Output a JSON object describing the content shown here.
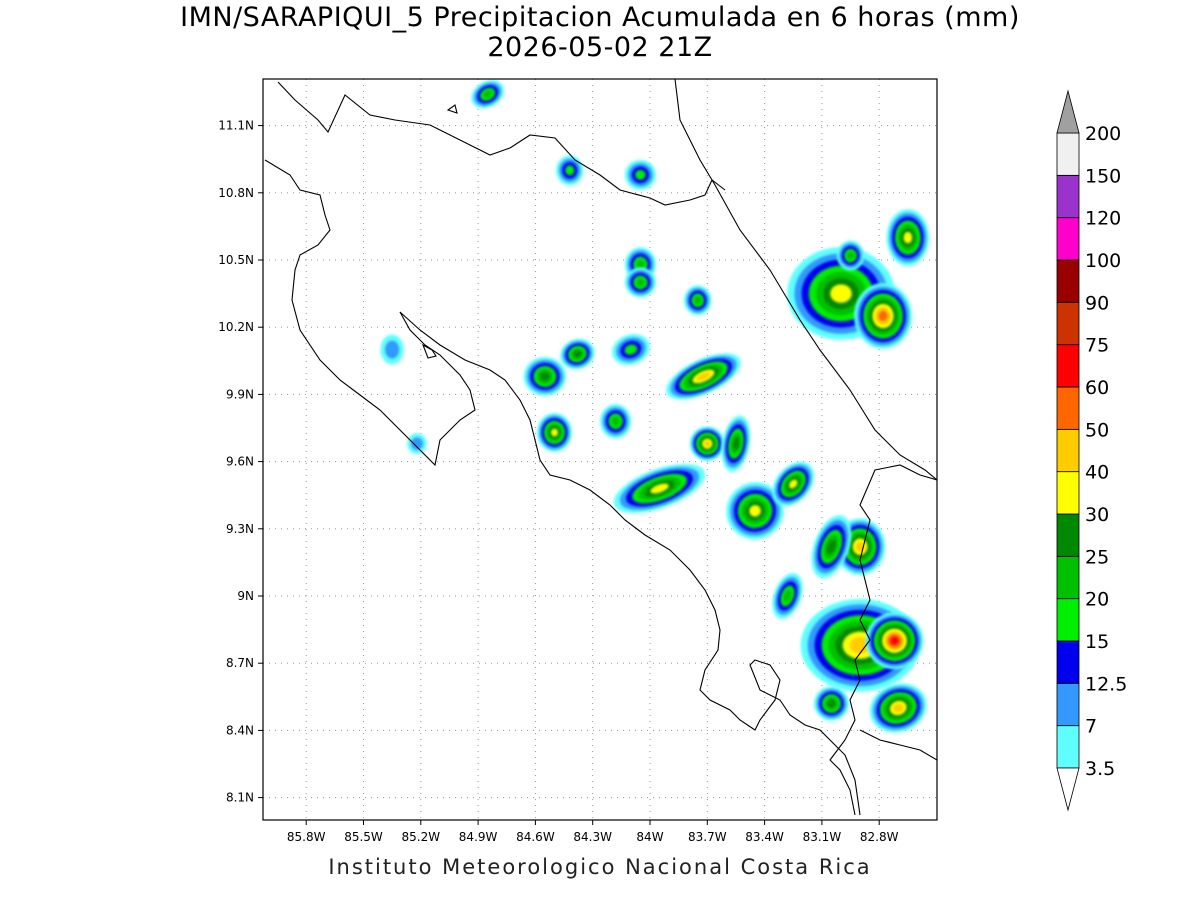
{
  "title": {
    "line1": "IMN/SARAPIQUI_5 Precipitacion Acumulada en 6 horas (mm)",
    "line2": "2026-05-02 21Z"
  },
  "credit": "Instituto Meteorologico Nacional Costa Rica",
  "axes": {
    "lon_ticks": [
      "85.8W",
      "85.5W",
      "85.2W",
      "84.9W",
      "84.6W",
      "84.3W",
      "84W",
      "83.7W",
      "83.4W",
      "83.1W",
      "82.8W"
    ],
    "lat_ticks": [
      "11.1N",
      "10.8N",
      "10.5N",
      "10.2N",
      "9.9N",
      "9.6N",
      "9.3N",
      "9N",
      "8.7N",
      "8.4N",
      "8.1N"
    ],
    "lon_range": [
      -86.0,
      -82.5
    ],
    "lat_range": [
      7.95,
      11.3
    ]
  },
  "colorbar": {
    "levels": [
      "3.5",
      "7",
      "12.5",
      "15",
      "20",
      "25",
      "30",
      "40",
      "50",
      "60",
      "75",
      "90",
      "100",
      "120",
      "150",
      "200"
    ],
    "colors": [
      "#5fffff",
      "#3399ff",
      "#0000ee",
      "#00ee00",
      "#00c000",
      "#008800",
      "#ffff00",
      "#ffcc00",
      "#ff6600",
      "#ff0000",
      "#cc3300",
      "#990000",
      "#ff00cc",
      "#9933cc",
      "#f0f0f0",
      "#a0a0a0"
    ]
  },
  "rain_cells": [
    {
      "lon": -83.95,
      "lat": 9.48,
      "rx": 0.22,
      "ry": 0.06,
      "level": 6,
      "rot": -20
    },
    {
      "lon": -83.72,
      "lat": 9.98,
      "rx": 0.18,
      "ry": 0.05,
      "level": 7,
      "rot": -25
    },
    {
      "lon": -83.45,
      "lat": 9.38,
      "rx": 0.12,
      "ry": 0.1,
      "level": 6,
      "rot": -40
    },
    {
      "lon": -83.25,
      "lat": 9.5,
      "rx": 0.1,
      "ry": 0.05,
      "level": 6,
      "rot": -50
    },
    {
      "lon": -84.55,
      "lat": 9.98,
      "rx": 0.08,
      "ry": 0.06,
      "level": 5,
      "rot": 0
    },
    {
      "lon": -84.5,
      "lat": 9.73,
      "rx": 0.06,
      "ry": 0.06,
      "level": 6,
      "rot": 0
    },
    {
      "lon": -84.38,
      "lat": 10.08,
      "rx": 0.06,
      "ry": 0.04,
      "level": 5,
      "rot": -20
    },
    {
      "lon": -84.1,
      "lat": 10.1,
      "rx": 0.07,
      "ry": 0.04,
      "level": 3,
      "rot": -20
    },
    {
      "lon": -83.7,
      "lat": 9.68,
      "rx": 0.06,
      "ry": 0.05,
      "level": 7,
      "rot": 0
    },
    {
      "lon": -83.0,
      "lat": 10.35,
      "rx": 0.25,
      "ry": 0.18,
      "level": 6,
      "rot": 0
    },
    {
      "lon": -82.78,
      "lat": 10.25,
      "rx": 0.12,
      "ry": 0.12,
      "level": 8,
      "rot": 0
    },
    {
      "lon": -82.65,
      "lat": 10.6,
      "rx": 0.08,
      "ry": 0.1,
      "level": 6,
      "rot": 0
    },
    {
      "lon": -82.9,
      "lat": 8.78,
      "rx": 0.28,
      "ry": 0.18,
      "level": 7,
      "rot": 0
    },
    {
      "lon": -82.72,
      "lat": 8.8,
      "rx": 0.12,
      "ry": 0.1,
      "level": 9,
      "rot": 0
    },
    {
      "lon": -82.7,
      "lat": 8.5,
      "rx": 0.12,
      "ry": 0.08,
      "level": 7,
      "rot": -20
    },
    {
      "lon": -82.9,
      "lat": 9.22,
      "rx": 0.1,
      "ry": 0.1,
      "level": 7,
      "rot": 0
    },
    {
      "lon": -83.05,
      "lat": 8.52,
      "rx": 0.06,
      "ry": 0.05,
      "level": 5,
      "rot": 0
    },
    {
      "lon": -83.05,
      "lat": 9.22,
      "rx": 0.06,
      "ry": 0.12,
      "level": 5,
      "rot": 20
    },
    {
      "lon": -83.55,
      "lat": 9.68,
      "rx": 0.04,
      "ry": 0.1,
      "level": 5,
      "rot": 10
    },
    {
      "lon": -84.18,
      "lat": 9.78,
      "rx": 0.05,
      "ry": 0.05,
      "level": 4,
      "rot": 0
    },
    {
      "lon": -84.05,
      "lat": 10.48,
      "rx": 0.05,
      "ry": 0.05,
      "level": 4,
      "rot": 0
    },
    {
      "lon": -84.05,
      "lat": 10.4,
      "rx": 0.05,
      "ry": 0.04,
      "level": 4,
      "rot": 0
    },
    {
      "lon": -84.05,
      "lat": 10.88,
      "rx": 0.05,
      "ry": 0.04,
      "level": 3,
      "rot": 0
    },
    {
      "lon": -84.85,
      "lat": 11.24,
      "rx": 0.06,
      "ry": 0.03,
      "level": 4,
      "rot": -30
    },
    {
      "lon": -84.42,
      "lat": 10.9,
      "rx": 0.04,
      "ry": 0.04,
      "level": 3,
      "rot": 0
    },
    {
      "lon": -83.75,
      "lat": 10.32,
      "rx": 0.04,
      "ry": 0.04,
      "level": 4,
      "rot": 0
    },
    {
      "lon": -82.95,
      "lat": 10.52,
      "rx": 0.04,
      "ry": 0.04,
      "level": 4,
      "rot": 0
    },
    {
      "lon": -83.28,
      "lat": 9.0,
      "rx": 0.04,
      "ry": 0.08,
      "level": 4,
      "rot": 20
    },
    {
      "lon": -85.22,
      "lat": 9.68,
      "rx": 0.02,
      "ry": 0.02,
      "level": 1,
      "rot": 0
    },
    {
      "lon": -85.35,
      "lat": 10.1,
      "rx": 0.03,
      "ry": 0.04,
      "level": 1,
      "rot": 0
    }
  ],
  "grid": true
}
